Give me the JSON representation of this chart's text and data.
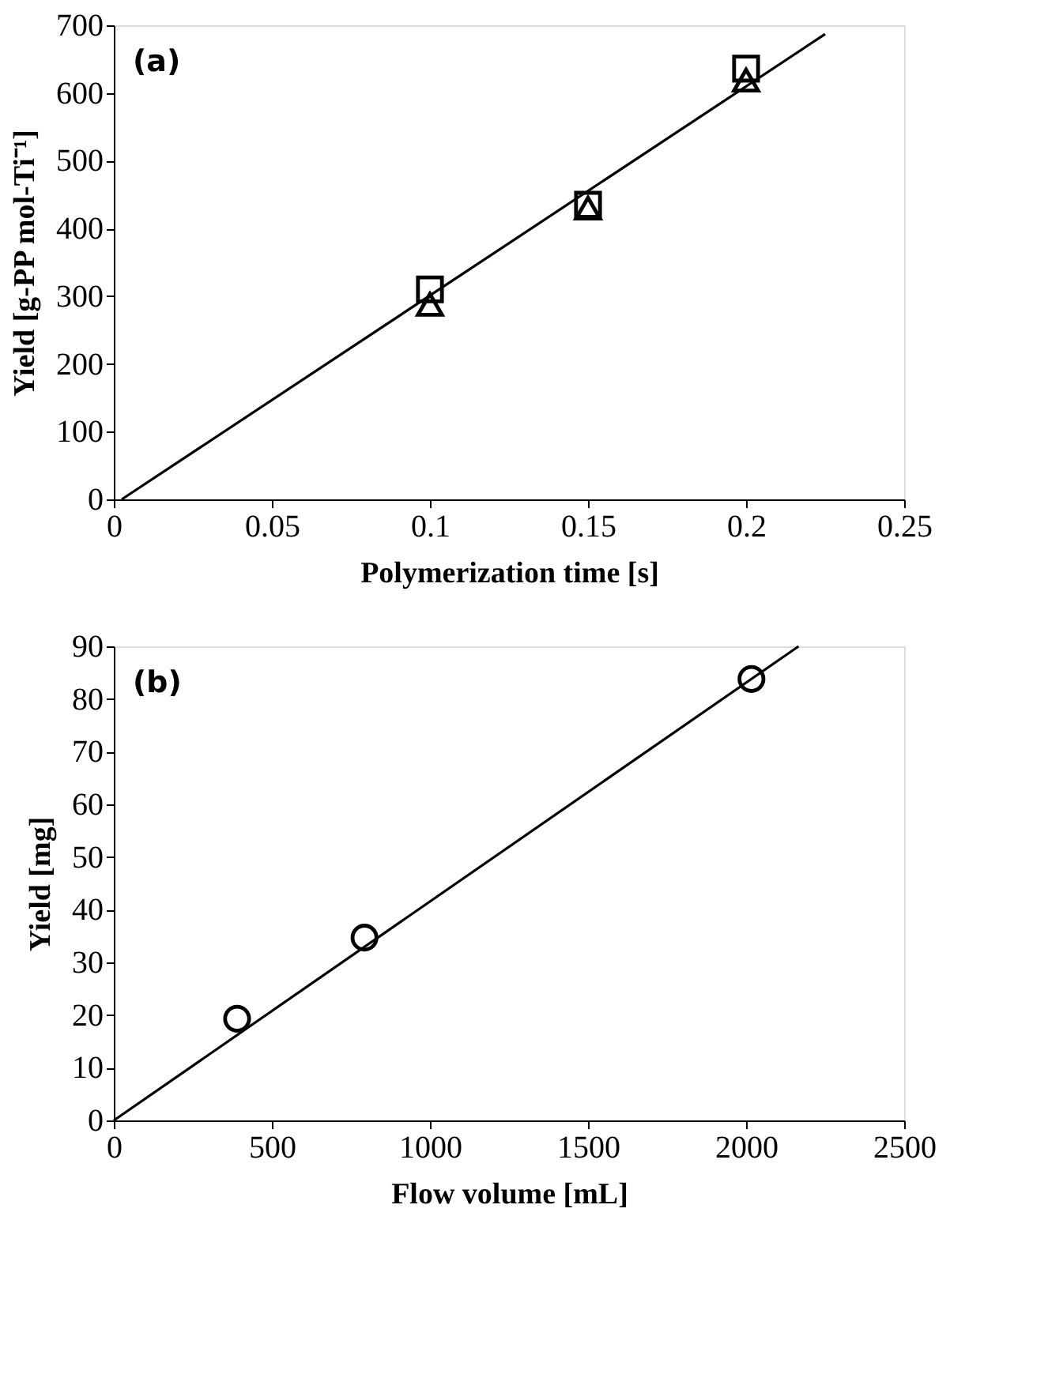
{
  "chart_data": [
    {
      "type": "scatter",
      "xlabel": "Polymerization time [s]",
      "ylabel": "Yield [g-PP mol-Ti⁻¹]",
      "annotations": [
        "(a)"
      ],
      "xlim": [
        0,
        0.25
      ],
      "xticks": [
        0,
        0.05,
        0.1,
        0.15,
        0.2,
        0.25
      ],
      "ylim": [
        0,
        700
      ],
      "yticks": [
        0,
        100,
        200,
        300,
        400,
        500,
        600,
        700
      ],
      "grid": false,
      "series": [
        {
          "marker": "square",
          "color": "#000000",
          "x": [
            0.1,
            0.15,
            0.2
          ],
          "values": [
            310,
            435,
            636
          ]
        },
        {
          "marker": "triangle",
          "color": "#000000",
          "x": [
            0.1,
            0.15,
            0.2
          ],
          "values": [
            288,
            430,
            619
          ]
        },
        {
          "type": "line",
          "marker": "none",
          "line_style": "solid",
          "color": "#000000",
          "x": [
            0.0025,
            0.225
          ],
          "values": [
            0,
            687
          ]
        }
      ]
    },
    {
      "type": "scatter",
      "xlabel": "Flow volume [mL]",
      "ylabel": "Yield [mg]",
      "annotations": [
        "(b)"
      ],
      "xlim": [
        0,
        2500
      ],
      "xticks": [
        0,
        500,
        1000,
        1500,
        2000,
        2500
      ],
      "ylim": [
        0,
        90
      ],
      "yticks": [
        0,
        10,
        20,
        30,
        40,
        50,
        60,
        70,
        80,
        90
      ],
      "grid": false,
      "series": [
        {
          "marker": "circle",
          "color": "#000000",
          "x": [
            390,
            793,
            2017
          ],
          "values": [
            19.3,
            34.7,
            83.8
          ]
        },
        {
          "type": "line",
          "marker": "none",
          "line_style": "solid",
          "color": "#000000",
          "x": [
            0,
            2166
          ],
          "values": [
            0,
            90
          ]
        }
      ]
    }
  ]
}
